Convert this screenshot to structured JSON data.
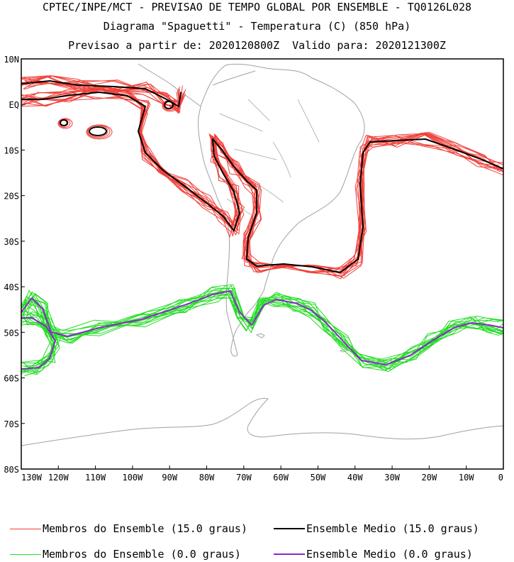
{
  "header": {
    "line1": "CPTEC/INPE/MCT - PREVISAO DE TEMPO GLOBAL POR ENSEMBLE - TQ0126L028",
    "line2": "Diagrama \"Spaguetti\" - Temperatura (C) (850 hPa)",
    "line3": "Previsao a partir de: 2020120800Z  Valido para: 2020121300Z"
  },
  "map": {
    "region": "South America and adjacent oceans",
    "lat_range": [
      "10N",
      "80S"
    ],
    "lon_range": [
      "130W",
      "0"
    ],
    "lat_labels": [
      "10N",
      "EQ",
      "10S",
      "20S",
      "30S",
      "40S",
      "50S",
      "60S",
      "70S",
      "80S"
    ],
    "lon_labels": [
      "130W",
      "120W",
      "110W",
      "100W",
      "90W",
      "80W",
      "70W",
      "60W",
      "50W",
      "40W",
      "30W",
      "20W",
      "10W",
      "0"
    ],
    "coastline_color": "#a0a0a0"
  },
  "legend": {
    "members_15": {
      "label": "Membros do Ensemble (15.0 graus)",
      "color": "#f0403a"
    },
    "mean_15": {
      "label": "Ensemble Medio (15.0 graus)",
      "color": "#000000"
    },
    "members_0": {
      "label": "Membros do Ensemble (0.0 graus)",
      "color": "#22dd22"
    },
    "mean_0": {
      "label": "Ensemble Medio (0.0 graus)",
      "color": "#8a2bc8"
    }
  }
}
